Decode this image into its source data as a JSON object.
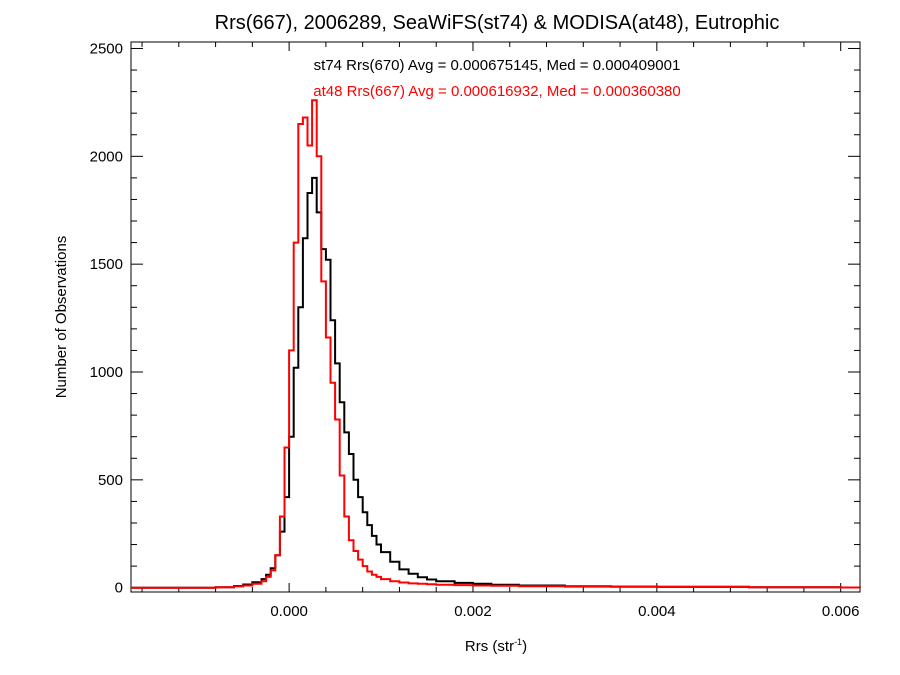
{
  "chart_data": {
    "type": "line",
    "style": "step-histogram",
    "title": "Rrs(667), 2006289, SeaWiFS(st74) & MODISA(at48), Eutrophic",
    "xlabel": {
      "main": "Rrs (str",
      "superscript": "-1",
      "close": ")"
    },
    "ylabel": "Number of Observations",
    "xlim": [
      -0.00172,
      0.00621
    ],
    "ylim": [
      -20,
      2530
    ],
    "xticks": [
      0.0,
      0.002,
      0.004,
      0.006
    ],
    "xtick_labels": [
      "0.000",
      "0.002",
      "0.004",
      "0.006"
    ],
    "yticks": [
      0,
      500,
      1000,
      1500,
      2000,
      2500
    ],
    "ytick_labels": [
      "0",
      "500",
      "1000",
      "1500",
      "2000",
      "2500"
    ],
    "grid": false,
    "annotations": [
      {
        "text": "st74 Rrs(670) Avg = 0.000675145, Med = 0.000409001",
        "color": "#000000"
      },
      {
        "text": "at48 Rrs(667) Avg = 0.000616932, Med = 0.000360380",
        "color": "#ff0000"
      }
    ],
    "series": [
      {
        "color": "#000000",
        "x": [
          -0.00172,
          -0.0008,
          -0.0006,
          -0.0005,
          -0.0004,
          -0.0003,
          -0.00025,
          -0.0002,
          -0.00015,
          -0.0001,
          -5e-05,
          0.0,
          5e-05,
          0.0001,
          0.00015,
          0.0002,
          0.00025,
          0.0003,
          0.00035,
          0.0004,
          0.00045,
          0.0005,
          0.00055,
          0.0006,
          0.00065,
          0.0007,
          0.00075,
          0.0008,
          0.00085,
          0.0009,
          0.00095,
          0.001,
          0.0011,
          0.0012,
          0.0013,
          0.0014,
          0.0015,
          0.0016,
          0.0018,
          0.002,
          0.0022,
          0.0025,
          0.003,
          0.0035,
          0.004,
          0.005,
          0.006,
          0.00621
        ],
        "y": [
          0,
          2,
          8,
          15,
          25,
          40,
          60,
          90,
          150,
          260,
          420,
          700,
          1020,
          1300,
          1620,
          1830,
          1900,
          1740,
          1570,
          1520,
          1240,
          1040,
          860,
          720,
          620,
          500,
          420,
          350,
          290,
          240,
          200,
          165,
          120,
          85,
          65,
          48,
          38,
          30,
          22,
          18,
          14,
          10,
          7,
          5,
          4,
          2,
          1,
          0
        ]
      },
      {
        "color": "#ff0000",
        "x": [
          -0.00172,
          -0.0008,
          -0.0006,
          -0.0005,
          -0.0004,
          -0.0003,
          -0.00025,
          -0.0002,
          -0.00015,
          -0.0001,
          -5e-05,
          0.0,
          5e-05,
          0.0001,
          0.00015,
          0.0002,
          0.00025,
          0.0003,
          0.00035,
          0.0004,
          0.00045,
          0.0005,
          0.00055,
          0.0006,
          0.00065,
          0.0007,
          0.00075,
          0.0008,
          0.00085,
          0.0009,
          0.00095,
          0.001,
          0.0011,
          0.0012,
          0.0013,
          0.0014,
          0.0015,
          0.0016,
          0.0018,
          0.002,
          0.0022,
          0.0025,
          0.003,
          0.0035,
          0.004,
          0.005,
          0.006,
          0.00621
        ],
        "y": [
          0,
          2,
          6,
          10,
          18,
          30,
          50,
          80,
          150,
          330,
          650,
          1100,
          1600,
          2150,
          2180,
          2050,
          2260,
          2000,
          1420,
          1160,
          950,
          780,
          520,
          330,
          220,
          170,
          130,
          100,
          75,
          60,
          50,
          40,
          30,
          24,
          20,
          18,
          16,
          14,
          12,
          10,
          9,
          7,
          5,
          4,
          3,
          2,
          1,
          0
        ]
      }
    ]
  }
}
